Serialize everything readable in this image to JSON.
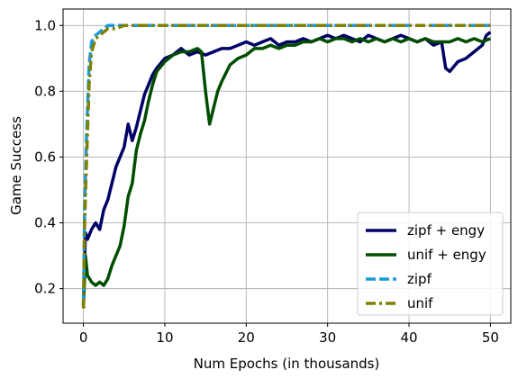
{
  "chart_data": {
    "type": "line",
    "title": "",
    "xlabel": "Num Epochs (in thousands)",
    "ylabel": "Game Success",
    "xlim": [
      -2.5,
      52.5
    ],
    "ylim": [
      0.095,
      1.05
    ],
    "xticks": [
      0,
      10,
      20,
      30,
      40,
      50
    ],
    "xtick_labels": [
      "0",
      "10",
      "20",
      "30",
      "40",
      "50"
    ],
    "yticks": [
      0.2,
      0.4,
      0.6,
      0.8,
      1.0
    ],
    "ytick_labels": [
      "0.2",
      "0.4",
      "0.6",
      "0.8",
      "1.0"
    ],
    "grid": true,
    "legend_position": "lower-right",
    "series": [
      {
        "name": "zipf + engy",
        "color": "#000066",
        "dash": "solid",
        "points": [
          [
            0,
            0.15
          ],
          [
            0.25,
            0.37
          ],
          [
            0.5,
            0.35
          ],
          [
            1,
            0.38
          ],
          [
            1.5,
            0.4
          ],
          [
            2,
            0.38
          ],
          [
            2.5,
            0.44
          ],
          [
            3,
            0.47
          ],
          [
            3.5,
            0.52
          ],
          [
            4,
            0.57
          ],
          [
            4.5,
            0.6
          ],
          [
            5,
            0.63
          ],
          [
            5.5,
            0.7
          ],
          [
            6,
            0.65
          ],
          [
            6.5,
            0.69
          ],
          [
            7,
            0.74
          ],
          [
            7.5,
            0.79
          ],
          [
            8,
            0.82
          ],
          [
            8.5,
            0.85
          ],
          [
            9,
            0.87
          ],
          [
            10,
            0.9
          ],
          [
            11,
            0.91
          ],
          [
            12,
            0.93
          ],
          [
            13,
            0.91
          ],
          [
            14,
            0.92
          ],
          [
            15,
            0.91
          ],
          [
            16,
            0.92
          ],
          [
            17,
            0.93
          ],
          [
            18,
            0.93
          ],
          [
            19,
            0.94
          ],
          [
            20,
            0.95
          ],
          [
            21,
            0.94
          ],
          [
            22,
            0.95
          ],
          [
            23,
            0.96
          ],
          [
            24,
            0.94
          ],
          [
            25,
            0.95
          ],
          [
            26,
            0.95
          ],
          [
            27,
            0.96
          ],
          [
            28,
            0.95
          ],
          [
            29,
            0.96
          ],
          [
            30,
            0.97
          ],
          [
            31,
            0.96
          ],
          [
            32,
            0.97
          ],
          [
            33,
            0.96
          ],
          [
            34,
            0.95
          ],
          [
            35,
            0.97
          ],
          [
            36,
            0.96
          ],
          [
            37,
            0.95
          ],
          [
            38,
            0.96
          ],
          [
            39,
            0.97
          ],
          [
            40,
            0.96
          ],
          [
            41,
            0.95
          ],
          [
            42,
            0.96
          ],
          [
            43,
            0.94
          ],
          [
            44,
            0.95
          ],
          [
            44.5,
            0.87
          ],
          [
            45,
            0.86
          ],
          [
            46,
            0.89
          ],
          [
            47,
            0.9
          ],
          [
            48,
            0.92
          ],
          [
            49,
            0.94
          ],
          [
            49.5,
            0.97
          ],
          [
            50,
            0.98
          ]
        ]
      },
      {
        "name": "unif + engy",
        "color": "#004d00",
        "dash": "solid",
        "points": [
          [
            0,
            0.14
          ],
          [
            0.25,
            0.3
          ],
          [
            0.5,
            0.24
          ],
          [
            1,
            0.22
          ],
          [
            1.5,
            0.21
          ],
          [
            2,
            0.22
          ],
          [
            2.5,
            0.21
          ],
          [
            3,
            0.23
          ],
          [
            3.5,
            0.27
          ],
          [
            4,
            0.3
          ],
          [
            4.5,
            0.33
          ],
          [
            5,
            0.39
          ],
          [
            5.5,
            0.48
          ],
          [
            6,
            0.52
          ],
          [
            6.5,
            0.62
          ],
          [
            7,
            0.67
          ],
          [
            7.5,
            0.71
          ],
          [
            8,
            0.77
          ],
          [
            8.5,
            0.82
          ],
          [
            9,
            0.86
          ],
          [
            10,
            0.89
          ],
          [
            11,
            0.91
          ],
          [
            12,
            0.92
          ],
          [
            13,
            0.92
          ],
          [
            14,
            0.93
          ],
          [
            14.5,
            0.92
          ],
          [
            15,
            0.8
          ],
          [
            15.5,
            0.7
          ],
          [
            16,
            0.75
          ],
          [
            16.5,
            0.8
          ],
          [
            17,
            0.83
          ],
          [
            18,
            0.88
          ],
          [
            19,
            0.9
          ],
          [
            20,
            0.91
          ],
          [
            21,
            0.93
          ],
          [
            22,
            0.93
          ],
          [
            23,
            0.94
          ],
          [
            24,
            0.93
          ],
          [
            25,
            0.94
          ],
          [
            26,
            0.94
          ],
          [
            27,
            0.95
          ],
          [
            28,
            0.95
          ],
          [
            29,
            0.96
          ],
          [
            30,
            0.95
          ],
          [
            31,
            0.96
          ],
          [
            32,
            0.96
          ],
          [
            33,
            0.95
          ],
          [
            34,
            0.96
          ],
          [
            35,
            0.95
          ],
          [
            36,
            0.96
          ],
          [
            37,
            0.95
          ],
          [
            38,
            0.96
          ],
          [
            39,
            0.95
          ],
          [
            40,
            0.96
          ],
          [
            41,
            0.95
          ],
          [
            42,
            0.96
          ],
          [
            43,
            0.95
          ],
          [
            44,
            0.95
          ],
          [
            45,
            0.95
          ],
          [
            46,
            0.96
          ],
          [
            47,
            0.95
          ],
          [
            48,
            0.96
          ],
          [
            49,
            0.95
          ],
          [
            50,
            0.96
          ]
        ]
      },
      {
        "name": "zipf",
        "color": "#1a9be0",
        "dash": "dashed",
        "points": [
          [
            0,
            0.15
          ],
          [
            0.15,
            0.45
          ],
          [
            0.4,
            0.68
          ],
          [
            0.7,
            0.88
          ],
          [
            1,
            0.95
          ],
          [
            1.5,
            0.97
          ],
          [
            2,
            0.98
          ],
          [
            2.5,
            0.99
          ],
          [
            3,
            1.0
          ],
          [
            4,
            1.0
          ],
          [
            5,
            1.0
          ],
          [
            10,
            1.0
          ],
          [
            20,
            1.0
          ],
          [
            30,
            1.0
          ],
          [
            40,
            1.0
          ],
          [
            50,
            1.0
          ]
        ]
      },
      {
        "name": "unif",
        "color": "#808000",
        "dash": "dashdot",
        "points": [
          [
            0,
            0.14
          ],
          [
            0.15,
            0.4
          ],
          [
            0.4,
            0.6
          ],
          [
            0.7,
            0.82
          ],
          [
            1,
            0.92
          ],
          [
            1.5,
            0.96
          ],
          [
            2,
            0.97
          ],
          [
            2.5,
            0.98
          ],
          [
            3,
            0.99
          ],
          [
            4,
            0.99
          ],
          [
            5,
            1.0
          ],
          [
            10,
            1.0
          ],
          [
            20,
            1.0
          ],
          [
            30,
            1.0
          ],
          [
            40,
            1.0
          ],
          [
            50,
            1.0
          ]
        ]
      }
    ]
  }
}
